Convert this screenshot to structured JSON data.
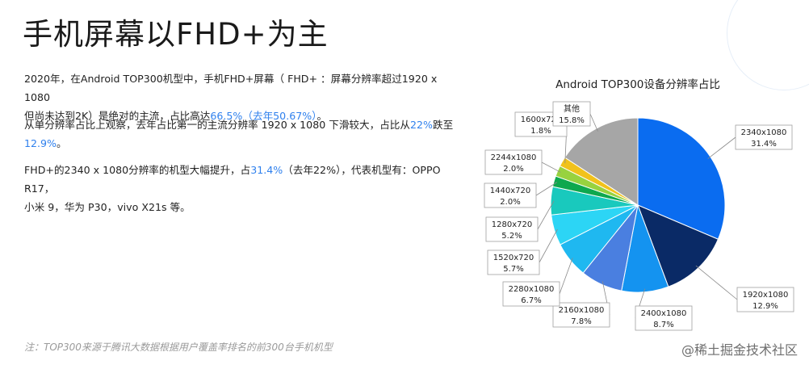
{
  "page": {
    "title": "手机屏幕以FHD+为主",
    "paragraphs": [
      {
        "lines": [
          [
            {
              "t": "2020年，在Android TOP300机型中，手机FHD+屏幕（  FHD+ ：屏幕分辨率超过1920 x 1080"
            }
          ],
          [
            {
              "t": "但尚未达到2K）是绝对的主流，占比高达"
            },
            {
              "t": "66.5%（去年50.67%）",
              "hl": true
            },
            {
              "t": "。"
            }
          ]
        ]
      },
      {
        "lines": [
          [
            {
              "t": "从单分辨率占比上观察，去年占比第一的主流分辨率 1920 x 1080 下滑较大，占比从"
            },
            {
              "t": "22%",
              "hl": true
            },
            {
              "t": "跌至"
            }
          ],
          [
            {
              "t": "12.9%",
              "hl": true
            },
            {
              "t": "。"
            }
          ]
        ]
      },
      {
        "lines": [
          [
            {
              "t": "FHD+的2340 x 1080分辨率的机型大幅提升，占"
            },
            {
              "t": "31.4%",
              "hl": true
            },
            {
              "t": "（去年22%），代表机型有：OPPO R17，"
            }
          ],
          [
            {
              "t": "小米 9，华为 P30，vivo X21s 等。"
            }
          ]
        ]
      }
    ],
    "note": "注：TOP300来源于腾讯大数据根据用户覆盖率排名的前300台手机机型",
    "watermark": "@稀土掘金技术社区"
  },
  "colors": {
    "highlight": "#2f80ed"
  },
  "chart_data": {
    "type": "pie",
    "title": "Android TOP300设备分辨率占比",
    "slices": [
      {
        "label": "2340x1080",
        "value": 31.4,
        "pct": "31.4%",
        "color": "#0a6cf0"
      },
      {
        "label": "1920x1080",
        "value": 12.9,
        "pct": "12.9%",
        "color": "#0a2a66"
      },
      {
        "label": "2400x1080",
        "value": 8.7,
        "pct": "8.7%",
        "color": "#1493f0"
      },
      {
        "label": "2160x1080",
        "value": 7.8,
        "pct": "7.8%",
        "color": "#4a7fe0"
      },
      {
        "label": "2280x1080",
        "value": 6.7,
        "pct": "6.7%",
        "color": "#1fb8f0"
      },
      {
        "label": "1520x720",
        "value": 5.7,
        "pct": "5.7%",
        "color": "#2cd5f5"
      },
      {
        "label": "1280x720",
        "value": 5.2,
        "pct": "5.2%",
        "color": "#19c9bd"
      },
      {
        "label": "1440x720",
        "value": 2.0,
        "pct": "2.0%",
        "color": "#0ea84e"
      },
      {
        "label": "2244x1080",
        "value": 2.0,
        "pct": "2.0%",
        "color": "#98d23f"
      },
      {
        "label": "1600x720",
        "value": 1.8,
        "pct": "1.8%",
        "color": "#f1c21b"
      },
      {
        "label": "其他",
        "value": 15.8,
        "pct": "15.8%",
        "color": "#a6a6a6"
      }
    ],
    "start": "12 o'clock",
    "direction": "clockwise"
  }
}
